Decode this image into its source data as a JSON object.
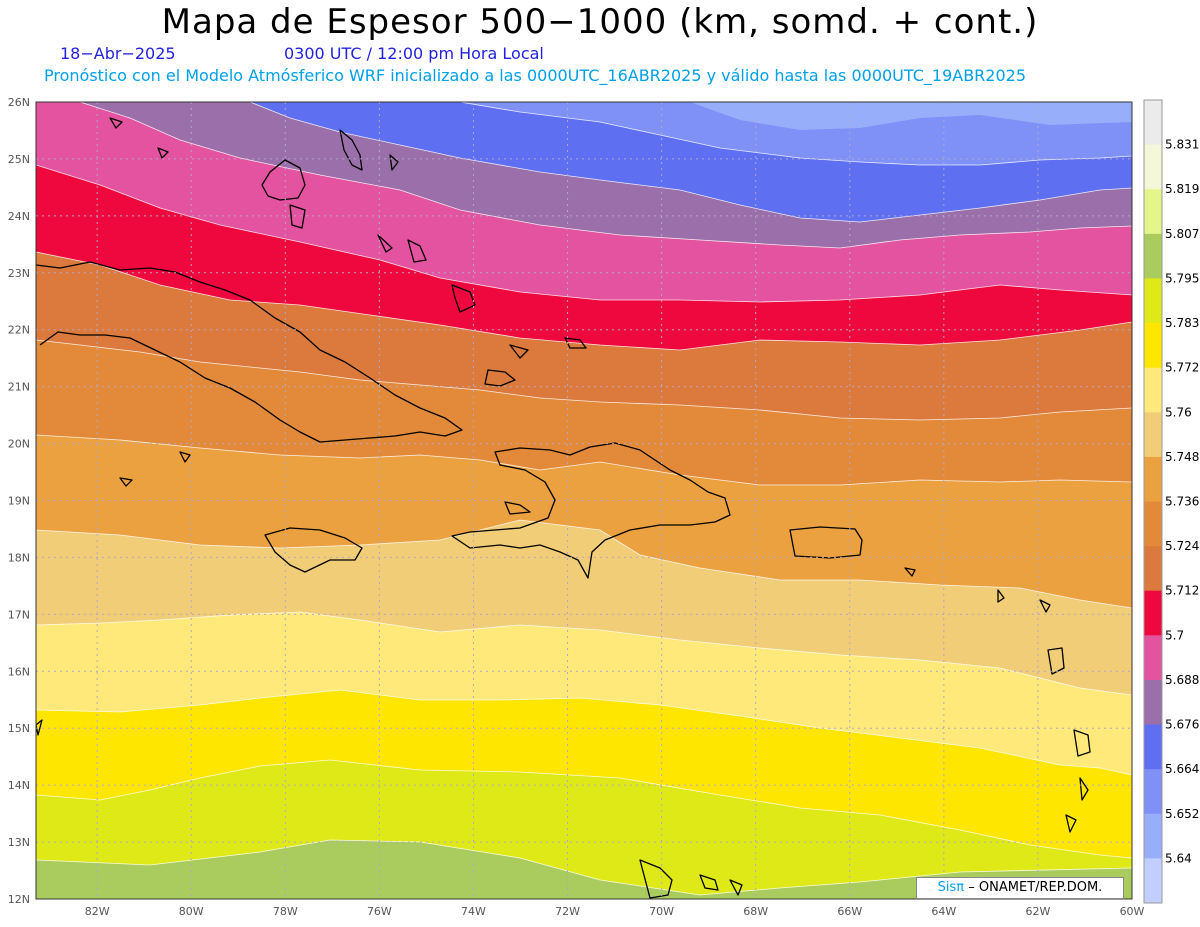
{
  "header": {
    "title": "Mapa de Espesor 500−1000 (km, somd. + cont.)",
    "date": "18−Abr−2025",
    "time": "0300 UTC / 12:00 pm Hora Local",
    "model": "Pronóstico con el Modelo Atmósferico WRF inicializado a las 0000UTC_16ABR2025 y válido hasta las  0000UTC_19ABR2025"
  },
  "map": {
    "lat_labels": [
      "26N",
      "25N",
      "24N",
      "23N",
      "22N",
      "21N",
      "20N",
      "19N",
      "18N",
      "17N",
      "16N",
      "15N",
      "14N",
      "13N",
      "12N"
    ],
    "lon_labels": [
      "82W",
      "80W",
      "78W",
      "76W",
      "74W",
      "72W",
      "70W",
      "68W",
      "66W",
      "64W",
      "62W",
      "60W"
    ],
    "lat_range": [
      12,
      26
    ],
    "lon_range": [
      -83.3,
      -60
    ],
    "grid": "dotted",
    "field_colors": [
      "#aacc5e",
      "#dfe918",
      "#ffe600",
      "#ffe97a",
      "#f2cd78",
      "#eca141",
      "#e38a3a",
      "#dc7a3e",
      "#ef083d",
      "#e4539f",
      "#9b6fa9",
      "#5f6ff2",
      "#7f91f6",
      "#97aefb"
    ]
  },
  "colorbar": {
    "labels": [
      "5.831",
      "5.819",
      "5.807",
      "5.795",
      "5.783",
      "5.772",
      "5.76",
      "5.748",
      "5.736",
      "5.724",
      "5.712",
      "5.7",
      "5.688",
      "5.676",
      "5.664",
      "5.652",
      "5.64"
    ],
    "colors": [
      "#ebebeb",
      "#f5f8d8",
      "#e4f58a",
      "#aacc5e",
      "#dfe918",
      "#ffe600",
      "#ffe97a",
      "#f2cd78",
      "#eca141",
      "#e38a3a",
      "#dc7a3e",
      "#ef083d",
      "#e4539f",
      "#9b6fa9",
      "#5f6ff2",
      "#7f91f6",
      "#97aefb",
      "#c2cffe"
    ]
  },
  "credit": {
    "brand": "Sisπ",
    "org": "– ONAMET/REP.DOM."
  }
}
